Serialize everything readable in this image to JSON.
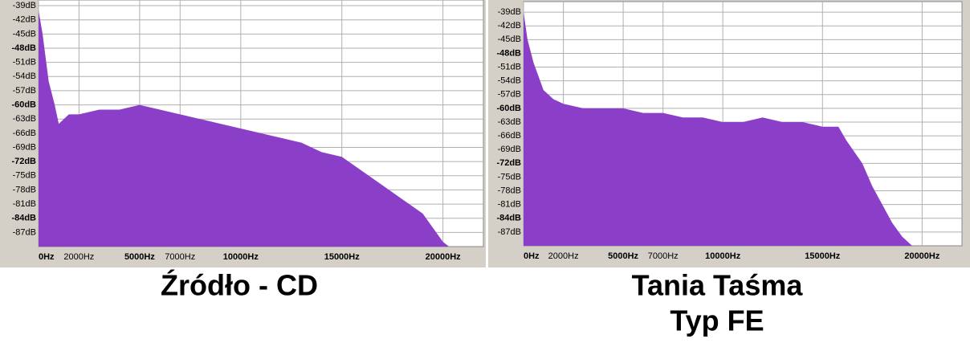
{
  "chart_data": [
    {
      "type": "area",
      "caption": [
        "Źródło - CD"
      ],
      "color": "#8b3ec8",
      "grid": true,
      "x": [
        0,
        200,
        500,
        800,
        1000,
        1500,
        2000,
        3000,
        4000,
        5000,
        6000,
        7000,
        8000,
        9000,
        10000,
        11000,
        12000,
        13000,
        14000,
        15000,
        16000,
        17000,
        18000,
        19000,
        19500,
        20000,
        20300
      ],
      "values": [
        -40,
        -45,
        -55,
        -60,
        -64,
        -62,
        -62,
        -61,
        -61,
        -60,
        -61,
        -62,
        -63,
        -64,
        -65,
        -66,
        -67,
        -68,
        -70,
        -71,
        -74,
        -77,
        -80,
        -83,
        -86,
        -89,
        -90
      ],
      "xlim": [
        0,
        22000
      ],
      "ylim": [
        -90,
        -37.8
      ],
      "xticks": [
        {
          "value": 0,
          "label": "0Hz"
        },
        {
          "value": 2000,
          "label": "2000Hz"
        },
        {
          "value": 5000,
          "label": "5000Hz"
        },
        {
          "value": 7000,
          "label": "7000Hz"
        },
        {
          "value": 10000,
          "label": "10000Hz"
        },
        {
          "value": 15000,
          "label": "15000Hz"
        },
        {
          "value": 20000,
          "label": "20000Hz"
        }
      ],
      "yticks": [
        {
          "value": -39,
          "label": "-39dB"
        },
        {
          "value": -42,
          "label": "-42dB"
        },
        {
          "value": -45,
          "label": "-45dB"
        },
        {
          "value": -48,
          "label": "-48dB"
        },
        {
          "value": -51,
          "label": "-51dB"
        },
        {
          "value": -54,
          "label": "-54dB"
        },
        {
          "value": -57,
          "label": "-57dB"
        },
        {
          "value": -60,
          "label": "-60dB"
        },
        {
          "value": -63,
          "label": "-63dB"
        },
        {
          "value": -66,
          "label": "-66dB"
        },
        {
          "value": -69,
          "label": "-69dB"
        },
        {
          "value": -72,
          "label": "-72dB"
        },
        {
          "value": -75,
          "label": "-75dB"
        },
        {
          "value": -78,
          "label": "-78dB"
        },
        {
          "value": -81,
          "label": "-81dB"
        },
        {
          "value": -84,
          "label": "-84dB"
        },
        {
          "value": -87,
          "label": "-87dB"
        }
      ]
    },
    {
      "type": "area",
      "caption": [
        "Tania Taśma",
        "Typ FE"
      ],
      "color": "#8b3ec8",
      "grid": true,
      "x": [
        0,
        200,
        500,
        1000,
        1500,
        2000,
        3000,
        4000,
        5000,
        6000,
        7000,
        8000,
        9000,
        10000,
        11000,
        12000,
        13000,
        14000,
        15000,
        15800,
        16200,
        17000,
        17500,
        18000,
        18500,
        19000,
        19500
      ],
      "values": [
        -39,
        -45,
        -50,
        -56,
        -58,
        -59,
        -60,
        -60,
        -60,
        -61,
        -61,
        -62,
        -62,
        -63,
        -63,
        -62,
        -63,
        -63,
        -64,
        -64,
        -67,
        -72,
        -77,
        -81,
        -85,
        -88,
        -90
      ],
      "xlim": [
        0,
        22000
      ],
      "ylim": [
        -90,
        -36.7
      ],
      "xticks": [
        {
          "value": 0,
          "label": "0Hz"
        },
        {
          "value": 2000,
          "label": "2000Hz"
        },
        {
          "value": 5000,
          "label": "5000Hz"
        },
        {
          "value": 7000,
          "label": "7000Hz"
        },
        {
          "value": 10000,
          "label": "10000Hz"
        },
        {
          "value": 15000,
          "label": "15000Hz"
        },
        {
          "value": 20000,
          "label": "20000Hz"
        }
      ],
      "yticks": [
        {
          "value": -39,
          "label": "-39dB"
        },
        {
          "value": -42,
          "label": "-42dB"
        },
        {
          "value": -45,
          "label": "-45dB"
        },
        {
          "value": -48,
          "label": "-48dB"
        },
        {
          "value": -51,
          "label": "-51dB"
        },
        {
          "value": -54,
          "label": "-54dB"
        },
        {
          "value": -57,
          "label": "-57dB"
        },
        {
          "value": -60,
          "label": "-60dB"
        },
        {
          "value": -63,
          "label": "-63dB"
        },
        {
          "value": -66,
          "label": "-66dB"
        },
        {
          "value": -69,
          "label": "-69dB"
        },
        {
          "value": -72,
          "label": "-72dB"
        },
        {
          "value": -75,
          "label": "-75dB"
        },
        {
          "value": -78,
          "label": "-78dB"
        },
        {
          "value": -81,
          "label": "-81dB"
        },
        {
          "value": -84,
          "label": "-84dB"
        },
        {
          "value": -87,
          "label": "-87dB"
        }
      ]
    }
  ]
}
